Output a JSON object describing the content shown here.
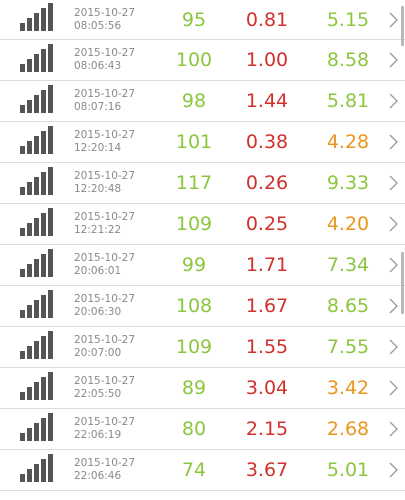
{
  "colors": {
    "green": "#8cc63f",
    "red": "#d0312d",
    "orange": "#e8961e",
    "timestamp": "#8a8a8a",
    "signal": "#555555",
    "chevron": "#9a9a9a"
  },
  "icons": {
    "signal": "signal-bars-icon",
    "chevron": "chevron-right-icon"
  },
  "rows": [
    {
      "date": "2015-10-27",
      "time": "08:05:56",
      "v1": "95",
      "v2": "0.81",
      "v3": "5.15",
      "c1": "green",
      "c2": "red",
      "c3": "green"
    },
    {
      "date": "2015-10-27",
      "time": "08:06:43",
      "v1": "100",
      "v2": "1.00",
      "v3": "8.58",
      "c1": "green",
      "c2": "red",
      "c3": "green"
    },
    {
      "date": "2015-10-27",
      "time": "08:07:16",
      "v1": "98",
      "v2": "1.44",
      "v3": "5.81",
      "c1": "green",
      "c2": "red",
      "c3": "green"
    },
    {
      "date": "2015-10-27",
      "time": "12:20:14",
      "v1": "101",
      "v2": "0.38",
      "v3": "4.28",
      "c1": "green",
      "c2": "red",
      "c3": "orange"
    },
    {
      "date": "2015-10-27",
      "time": "12:20:48",
      "v1": "117",
      "v2": "0.26",
      "v3": "9.33",
      "c1": "green",
      "c2": "red",
      "c3": "green"
    },
    {
      "date": "2015-10-27",
      "time": "12:21:22",
      "v1": "109",
      "v2": "0.25",
      "v3": "4.20",
      "c1": "green",
      "c2": "red",
      "c3": "orange"
    },
    {
      "date": "2015-10-27",
      "time": "20:06:01",
      "v1": "99",
      "v2": "1.71",
      "v3": "7.34",
      "c1": "green",
      "c2": "red",
      "c3": "green"
    },
    {
      "date": "2015-10-27",
      "time": "20:06:30",
      "v1": "108",
      "v2": "1.67",
      "v3": "8.65",
      "c1": "green",
      "c2": "red",
      "c3": "green"
    },
    {
      "date": "2015-10-27",
      "time": "20:07:00",
      "v1": "109",
      "v2": "1.55",
      "v3": "7.55",
      "c1": "green",
      "c2": "red",
      "c3": "green"
    },
    {
      "date": "2015-10-27",
      "time": "22:05:50",
      "v1": "89",
      "v2": "3.04",
      "v3": "3.42",
      "c1": "green",
      "c2": "red",
      "c3": "orange"
    },
    {
      "date": "2015-10-27",
      "time": "22:06:19",
      "v1": "80",
      "v2": "2.15",
      "v3": "2.68",
      "c1": "green",
      "c2": "red",
      "c3": "orange"
    },
    {
      "date": "2015-10-27",
      "time": "22:06:46",
      "v1": "74",
      "v2": "3.67",
      "v3": "5.01",
      "c1": "green",
      "c2": "red",
      "c3": "green"
    }
  ]
}
